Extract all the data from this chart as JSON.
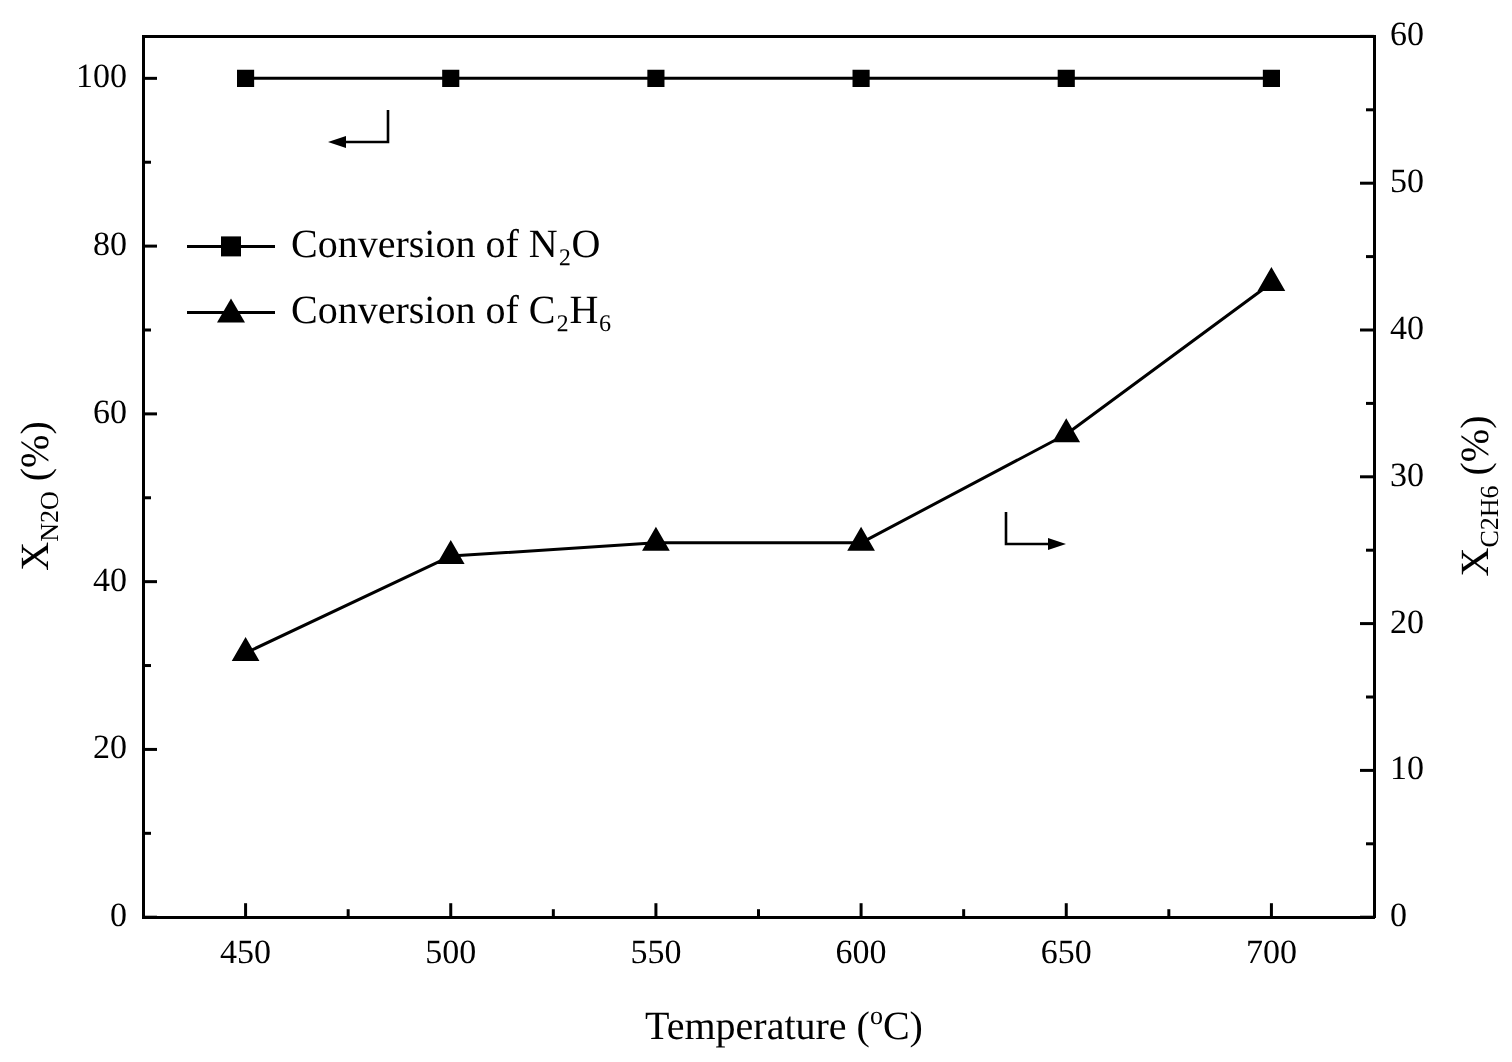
{
  "chart_data": {
    "type": "line",
    "xlabel": "Temperature ($^{o}$C)",
    "ylabel": "X$_{N2O}$ (%)",
    "y2label": "X$_{C2H6}$ (%)",
    "x": [
      450,
      500,
      550,
      600,
      650,
      700
    ],
    "xlim": [
      425,
      725
    ],
    "xticks": [
      450,
      {
        "value": 475,
        "label": null
      },
      500,
      {
        "value": 525,
        "label": null
      },
      550,
      {
        "value": 575,
        "label": null
      },
      600,
      {
        "value": 625,
        "label": null
      },
      650,
      {
        "value": 675,
        "label": null
      },
      700
    ],
    "ylim": [
      0,
      105
    ],
    "yticks": [
      0,
      {
        "value": 10,
        "label": null
      },
      20,
      {
        "value": 30,
        "label": null
      },
      40,
      {
        "value": 50,
        "label": null
      },
      60,
      {
        "value": 70,
        "label": null
      },
      80,
      {
        "value": 90,
        "label": null
      },
      100
    ],
    "y2lim": [
      0,
      60
    ],
    "y2ticks": [
      0,
      {
        "value": 5,
        "label": null
      },
      10,
      {
        "value": 15,
        "label": null
      },
      20,
      {
        "value": 25,
        "label": null
      },
      30,
      {
        "value": 35,
        "label": null
      },
      40,
      {
        "value": 45,
        "label": null
      },
      50,
      {
        "value": 55,
        "label": null
      },
      60
    ],
    "series": [
      {
        "name": "Conversion of N₂O",
        "color": "#000000",
        "marker": "square",
        "values": [
          100,
          100,
          100,
          100,
          100,
          100
        ]
      },
      {
        "name": "Conversion of C₂H₆",
        "color": "#000000",
        "marker": "triangle",
        "axis": "y2",
        "values": [
          18,
          24.6,
          25.5,
          25.5,
          32.9,
          43.2
        ]
      }
    ],
    "legend": "top left",
    "grid": false,
    "line_style": "solid"
  }
}
